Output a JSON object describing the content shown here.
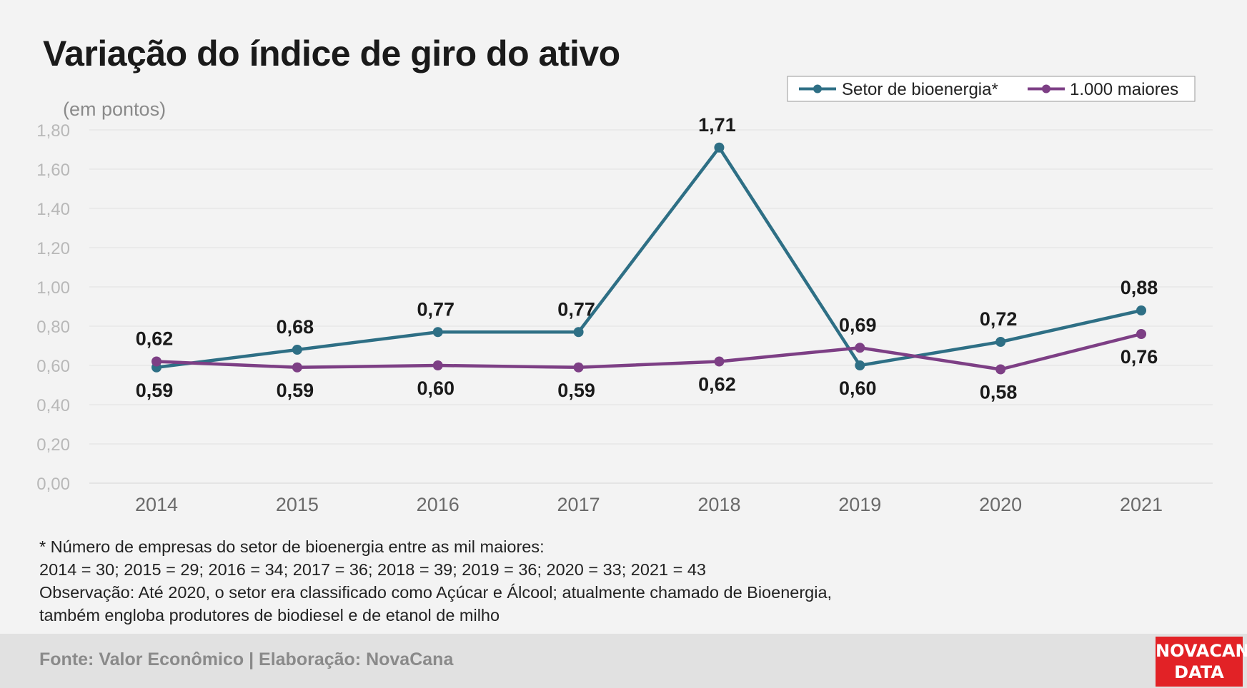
{
  "title": "Variação do índice de giro do ativo",
  "notes": {
    "line1": "* Número de empresas do setor de bioenergia entre as mil maiores:",
    "line2": "2014 = 30; 2015 = 29; 2016 = 34; 2017 = 36; 2018 = 39; 2019 = 36; 2020 = 33; 2021 = 43",
    "line3": "Observação: Até 2020, o setor era classificado como Açúcar e Álcool; atualmente chamado de Bioenergia,",
    "line4": "também engloba produtores de biodiesel e de etanol de milho"
  },
  "footer": {
    "source": "Fonte: Valor Econômico | Elaboração: NovaCana",
    "logo_line1": "NOVACANA",
    "logo_line2": "DATA",
    "logo_color": "#e22226"
  },
  "chart_data": {
    "type": "line",
    "title": "Variação do índice de giro do ativo",
    "ylabel": "(em pontos)",
    "xlabel": "",
    "x": [
      "2014",
      "2015",
      "2016",
      "2017",
      "2018",
      "2019",
      "2020",
      "2021"
    ],
    "ylim": [
      0,
      1.8
    ],
    "yticks": [
      "0,00",
      "0,20",
      "0,40",
      "0,60",
      "0,80",
      "1,00",
      "1,20",
      "1,40",
      "1,60",
      "1,80"
    ],
    "grid": true,
    "legend_position": "top-right",
    "series": [
      {
        "name": "Setor de bioenergia*",
        "color": "#2e6f85",
        "values": [
          0.59,
          0.68,
          0.77,
          0.77,
          1.71,
          0.6,
          0.72,
          0.88
        ],
        "labels": [
          "0,59",
          "0,68",
          "0,77",
          "0,77",
          "1,71",
          "0,60",
          "0,72",
          "0,88"
        ]
      },
      {
        "name": "1.000 maiores",
        "color": "#7d3f85",
        "values": [
          0.62,
          0.59,
          0.6,
          0.59,
          0.62,
          0.69,
          0.58,
          0.76
        ],
        "labels": [
          "0,62",
          "0,59",
          "0,60",
          "0,59",
          "0,62",
          "0,69",
          "0,58",
          "0,76"
        ]
      }
    ]
  }
}
